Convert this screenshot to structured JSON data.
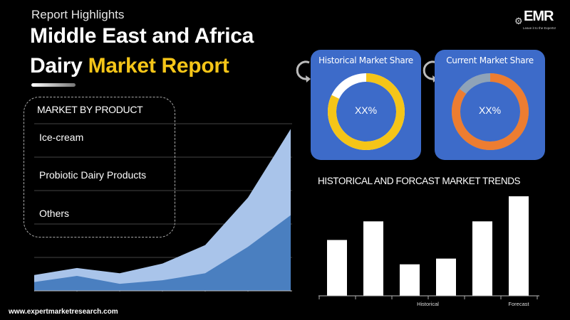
{
  "header": {
    "kicker": "Report Highlights",
    "title_line1": "Middle East and Africa",
    "title_line2_plain": "Dairy",
    "title_line2_accent": "Market Report"
  },
  "logo": {
    "main": "EMR",
    "sub": "Leave it to the Experts!"
  },
  "product_box": {
    "heading": "MARKET BY PRODUCT",
    "items": [
      "Ice-cream",
      "Probiotic Dairy Products",
      "Others"
    ]
  },
  "cards": {
    "historical": {
      "title": "Historical Market Share",
      "value": "XX%",
      "share": 0.82,
      "ring_color": "#f5c518",
      "rest_color": "#ffffff"
    },
    "current": {
      "title": "Current Market Share",
      "value": "XX%",
      "share": 0.85,
      "ring_color": "#ed7d31",
      "rest_color": "#8fa3b8"
    }
  },
  "colors": {
    "accent": "#f5c518",
    "card_bg": "#3d6bc9",
    "area_light": "#a9c4ea",
    "area_dark": "#4a7fc0"
  },
  "chart_data": [
    {
      "type": "area",
      "x": [
        0,
        1,
        2,
        3,
        4,
        5,
        6
      ],
      "series": [
        {
          "values": [
            18,
            26,
            20,
            31,
            52,
            106,
            184
          ]
        },
        {
          "values": [
            10,
            17,
            8,
            12,
            20,
            50,
            86
          ]
        }
      ],
      "ylim": [
        0,
        190
      ],
      "grid": true
    },
    {
      "type": "bar",
      "title": "HISTORICAL AND FORCAST MARKET TRENDS",
      "values": [
        78,
        104,
        44,
        52,
        104,
        139
      ],
      "tick_labels": [
        {
          "label": "Historical",
          "at": 2.5
        },
        {
          "label": "Forecast",
          "at": 5
        }
      ],
      "ylim": [
        0,
        145
      ]
    }
  ],
  "footer": {
    "url": "www.expertmarketresearch.com"
  }
}
